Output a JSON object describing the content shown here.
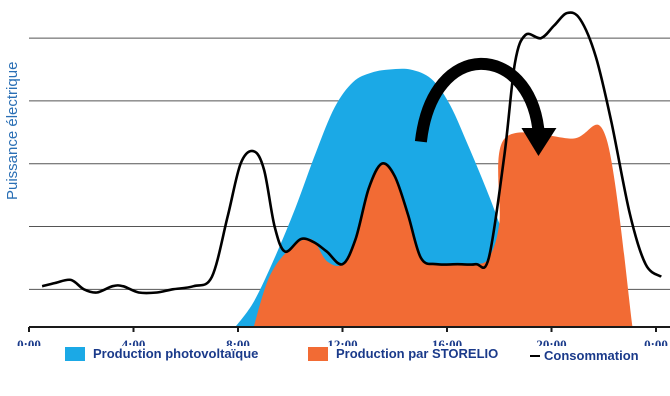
{
  "colors": {
    "pv": "#1ba9e6",
    "storelio": "#f26b34",
    "consumption": "#000000",
    "grid": "#555555",
    "axis": "#1a1a1a",
    "tick_label": "#1a3a8a",
    "ylabel": "#2a6fb5",
    "legend_text": "#1a3a8a"
  },
  "chart_data": {
    "type": "area",
    "ylabel": "Puissance électrique",
    "x_unit": "hours",
    "xlim": [
      0,
      24
    ],
    "ylim": [
      0,
      100
    ],
    "grid": true,
    "legend_position": "bottom",
    "x_ticks": [
      {
        "value": 0,
        "label": "0:00"
      },
      {
        "value": 4,
        "label": "4:00"
      },
      {
        "value": 8,
        "label": "8:00"
      },
      {
        "value": 12,
        "label": "12:00"
      },
      {
        "value": 16,
        "label": "16:00"
      },
      {
        "value": 20,
        "label": "20:00"
      },
      {
        "value": 24,
        "label": "0:00"
      }
    ],
    "y_gridlines": [
      12,
      32,
      52,
      72,
      92
    ],
    "series": [
      {
        "name": "Production photovoltaïque",
        "kind": "area",
        "color": "#1ba9e6",
        "points": [
          [
            7.9,
            0
          ],
          [
            8.6,
            8
          ],
          [
            9.4,
            22
          ],
          [
            10.2,
            38
          ],
          [
            11.0,
            56
          ],
          [
            11.7,
            70
          ],
          [
            12.4,
            78
          ],
          [
            13.1,
            81
          ],
          [
            13.8,
            82
          ],
          [
            14.6,
            82
          ],
          [
            15.4,
            79
          ],
          [
            16.1,
            71
          ],
          [
            16.8,
            58
          ],
          [
            17.5,
            44
          ],
          [
            18.0,
            33
          ],
          [
            18.6,
            18
          ],
          [
            19.2,
            6
          ],
          [
            19.7,
            2
          ],
          [
            20.1,
            0
          ]
        ]
      },
      {
        "name": "Production par STORELIO",
        "kind": "area",
        "color": "#f26b34",
        "points": [
          [
            8.6,
            0
          ],
          [
            9.2,
            16
          ],
          [
            10.0,
            25
          ],
          [
            10.8,
            28
          ],
          [
            11.4,
            21
          ],
          [
            12.0,
            20
          ],
          [
            12.5,
            28
          ],
          [
            13.0,
            44
          ],
          [
            13.5,
            52
          ],
          [
            14.0,
            48
          ],
          [
            14.5,
            36
          ],
          [
            15.0,
            22
          ],
          [
            15.6,
            20
          ],
          [
            16.4,
            20
          ],
          [
            17.1,
            20
          ],
          [
            17.6,
            22
          ],
          [
            18.0,
            33
          ],
          [
            18.2,
            60
          ],
          [
            20.8,
            60
          ],
          [
            22.1,
            60
          ],
          [
            23.1,
            0
          ]
        ]
      },
      {
        "name": "Consommation",
        "kind": "line",
        "color": "#000000",
        "points": [
          [
            0.5,
            13
          ],
          [
            1.0,
            14
          ],
          [
            1.6,
            15
          ],
          [
            2.1,
            12
          ],
          [
            2.6,
            11
          ],
          [
            3.2,
            13
          ],
          [
            3.6,
            13
          ],
          [
            4.2,
            11
          ],
          [
            4.9,
            11
          ],
          [
            5.5,
            12
          ],
          [
            6.3,
            13
          ],
          [
            7.0,
            16
          ],
          [
            7.6,
            35
          ],
          [
            8.1,
            52
          ],
          [
            8.6,
            56
          ],
          [
            9.0,
            50
          ],
          [
            9.4,
            32
          ],
          [
            9.8,
            24
          ],
          [
            10.4,
            28
          ],
          [
            10.9,
            27
          ],
          [
            11.4,
            24
          ],
          [
            12.0,
            20
          ],
          [
            12.5,
            28
          ],
          [
            13.0,
            44
          ],
          [
            13.5,
            52
          ],
          [
            14.0,
            48
          ],
          [
            14.5,
            36
          ],
          [
            15.0,
            22
          ],
          [
            15.6,
            20
          ],
          [
            16.4,
            20
          ],
          [
            17.1,
            20
          ],
          [
            17.6,
            22
          ],
          [
            18.2,
            55
          ],
          [
            18.6,
            84
          ],
          [
            19.0,
            93
          ],
          [
            19.6,
            92
          ],
          [
            20.1,
            96
          ],
          [
            20.6,
            100
          ],
          [
            21.1,
            98
          ],
          [
            21.7,
            86
          ],
          [
            22.3,
            65
          ],
          [
            23.0,
            36
          ],
          [
            23.6,
            20
          ],
          [
            24.2,
            16
          ]
        ]
      }
    ],
    "annotations": [
      {
        "type": "arrow",
        "from_x": 15.0,
        "from_y": 59,
        "to_x": 19.5,
        "to_y": 57
      }
    ]
  },
  "legend": {
    "pv_label": "Production photovoltaïque",
    "storelio_label": "Production par STORELIO",
    "consumption_label": "Consommation"
  }
}
